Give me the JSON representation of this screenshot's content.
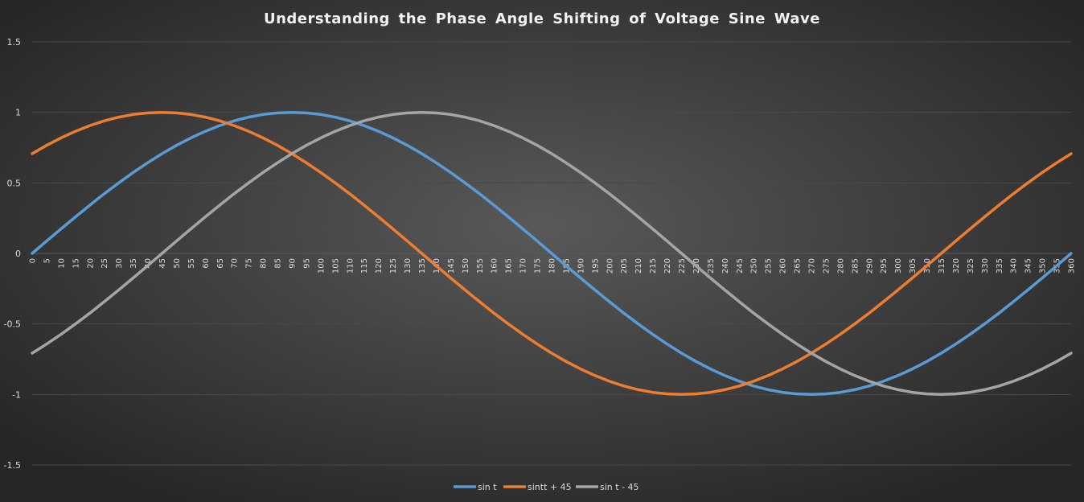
{
  "chart_data": {
    "type": "line",
    "title": "Understanding the Phase Angle Shifting of Voltage Sine Wave",
    "xlabel": "",
    "ylabel": "",
    "ylim": [
      -1.5,
      1.5
    ],
    "yticks": [
      "1.5",
      "1",
      "0.5",
      "0",
      "-0.5",
      "-1",
      "-1.5"
    ],
    "ytick_values": [
      1.5,
      1,
      0.5,
      0,
      -0.5,
      -1,
      -1.5
    ],
    "grid": true,
    "legend_position": "bottom",
    "x": [
      0,
      5,
      10,
      15,
      20,
      25,
      30,
      35,
      40,
      45,
      50,
      55,
      60,
      65,
      70,
      75,
      80,
      85,
      90,
      95,
      100,
      105,
      110,
      115,
      120,
      125,
      130,
      135,
      140,
      145,
      150,
      155,
      160,
      165,
      170,
      175,
      180,
      185,
      190,
      195,
      200,
      205,
      210,
      215,
      220,
      225,
      230,
      235,
      240,
      245,
      250,
      255,
      260,
      265,
      270,
      275,
      280,
      285,
      290,
      295,
      300,
      305,
      310,
      315,
      320,
      325,
      330,
      335,
      340,
      345,
      350,
      355,
      360
    ],
    "series": [
      {
        "name": "sin t",
        "color": "#5B9BD5",
        "values": [
          0,
          0.087,
          0.174,
          0.259,
          0.342,
          0.423,
          0.5,
          0.574,
          0.643,
          0.707,
          0.766,
          0.819,
          0.866,
          0.906,
          0.94,
          0.966,
          0.985,
          0.996,
          1,
          0.996,
          0.985,
          0.966,
          0.94,
          0.906,
          0.866,
          0.819,
          0.766,
          0.707,
          0.643,
          0.574,
          0.5,
          0.423,
          0.342,
          0.259,
          0.174,
          0.087,
          0,
          -0.087,
          -0.174,
          -0.259,
          -0.342,
          -0.423,
          -0.5,
          -0.574,
          -0.643,
          -0.707,
          -0.766,
          -0.819,
          -0.866,
          -0.906,
          -0.94,
          -0.966,
          -0.985,
          -0.996,
          -1,
          -0.996,
          -0.985,
          -0.966,
          -0.94,
          -0.906,
          -0.866,
          -0.819,
          -0.766,
          -0.707,
          -0.643,
          -0.574,
          -0.5,
          -0.423,
          -0.342,
          -0.259,
          -0.174,
          -0.087,
          0
        ]
      },
      {
        "name": "sintt + 45",
        "color": "#ED7D31",
        "values": [
          0.707,
          0.766,
          0.819,
          0.866,
          0.906,
          0.94,
          0.966,
          0.985,
          0.996,
          1,
          0.996,
          0.985,
          0.966,
          0.94,
          0.906,
          0.866,
          0.819,
          0.766,
          0.707,
          0.643,
          0.574,
          0.5,
          0.423,
          0.342,
          0.259,
          0.174,
          0.087,
          0,
          -0.087,
          -0.174,
          -0.259,
          -0.342,
          -0.423,
          -0.5,
          -0.574,
          -0.643,
          -0.707,
          -0.766,
          -0.819,
          -0.866,
          -0.906,
          -0.94,
          -0.966,
          -0.985,
          -0.996,
          -1,
          -0.996,
          -0.985,
          -0.966,
          -0.94,
          -0.906,
          -0.866,
          -0.819,
          -0.766,
          -0.707,
          -0.643,
          -0.574,
          -0.5,
          -0.423,
          -0.342,
          -0.259,
          -0.174,
          -0.087,
          0,
          0.087,
          0.174,
          0.259,
          0.342,
          0.423,
          0.5,
          0.574,
          0.643,
          0.707
        ]
      },
      {
        "name": "sin t - 45",
        "color": "#A5A5A5",
        "values": [
          -0.707,
          -0.643,
          -0.574,
          -0.5,
          -0.423,
          -0.342,
          -0.259,
          -0.174,
          -0.087,
          0,
          0.087,
          0.174,
          0.259,
          0.342,
          0.423,
          0.5,
          0.574,
          0.643,
          0.707,
          0.766,
          0.819,
          0.866,
          0.906,
          0.94,
          0.966,
          0.985,
          0.996,
          1,
          0.996,
          0.985,
          0.966,
          0.94,
          0.906,
          0.866,
          0.819,
          0.766,
          0.707,
          0.643,
          0.574,
          0.5,
          0.423,
          0.342,
          0.259,
          0.174,
          0.087,
          0,
          -0.087,
          -0.174,
          -0.259,
          -0.342,
          -0.423,
          -0.5,
          -0.574,
          -0.643,
          -0.707,
          -0.766,
          -0.819,
          -0.866,
          -0.906,
          -0.94,
          -0.966,
          -0.985,
          -0.996,
          -1,
          -0.996,
          -0.985,
          -0.966,
          -0.94,
          -0.906,
          -0.866,
          -0.819,
          -0.766,
          -0.707
        ]
      }
    ]
  }
}
